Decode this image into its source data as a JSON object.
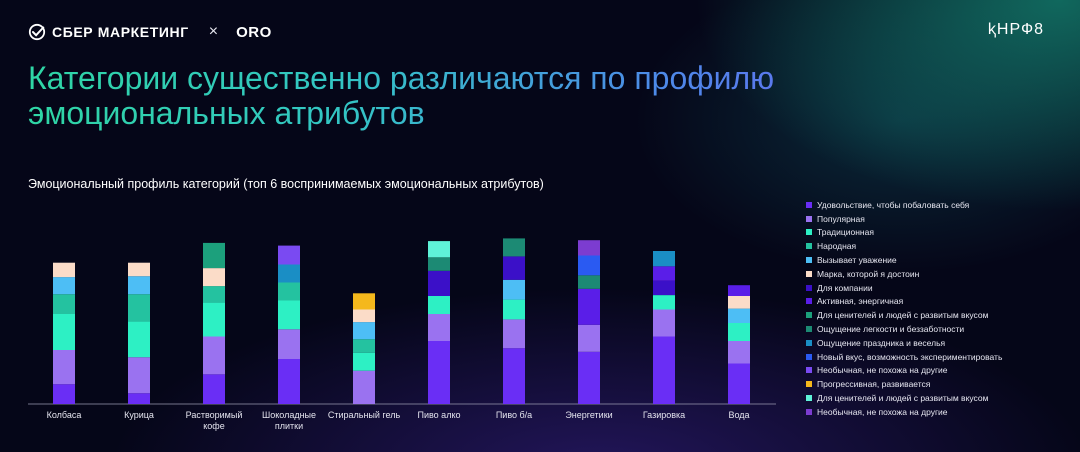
{
  "header": {
    "brand": "СБЕР МАРКЕТИНГ",
    "times": "×",
    "partner": "ORO",
    "right_logo": "ⱪНРФ8"
  },
  "title": "Категории существенно различаются по профилю эмоциональных атрибутов",
  "chart_title": "Эмоциональный профиль категорий (топ 6 воспринимаемых эмоциональных атрибутов)",
  "colors": {
    "Удовольствие, чтобы побаловать себя": "#6a2ef5",
    "Популярная": "#9a72f0",
    "Традиционная": "#2df0c4",
    "Народная": "#24c2a0",
    "Вызывает уважение": "#4dbef5",
    "Марка, которой я достоин": "#fbdcc8",
    "Для компании": "#3b10c8",
    "Активная, энергичная": "#5a1ee8",
    "Для ценителей и людей с развитым вкусом": "#1ca07c",
    "Ощущение легкости и беззаботности": "#1c8a74",
    "Ощущение праздника и веселья": "#1a8ec5",
    "Новый вкус, возможность экспериментировать": "#2a5af2",
    "Необычная, не похожа на другие": "#7a4af2",
    "Прогрессивная, развивается": "#f5b81c",
    "Для ценителей и людей с развитым вкусом ": "#5ff2d8",
    "Необычная, не похожа на другие ": "#7c3cd0"
  },
  "chart_data": {
    "type": "bar",
    "stacked": true,
    "title": "Эмоциональный профиль категорий (топ 6 воспринимаемых эмоциональных атрибутов)",
    "xlabel": "",
    "ylabel": "",
    "grid": false,
    "legend_position": "right",
    "categories": [
      "Колбаса",
      "Курица",
      "Растворимый\nкофе",
      "Шоколадные\nплитки",
      "Стиральный гель",
      "Пиво алко",
      "Пиво б/а",
      "Энергетики",
      "Газировка",
      "Вода"
    ],
    "legend": [
      "Удовольствие, чтобы побаловать себя",
      "Популярная",
      "Традиционная",
      "Народная",
      "Вызывает уважение",
      "Марка, которой я достоин",
      "Для компании",
      "Активная, энергичная",
      "Для ценителей и людей с развитым вкусом",
      "Ощущение легкости и беззаботности",
      "Ощущение праздника и веселья",
      "Новый вкус, возможность экспериментировать",
      "Необычная, не похожа на другие",
      "Прогрессивная, развивается",
      "Для ценителей и людей с развитым вкусом ",
      "Необычная, не похожа на другие "
    ],
    "bars": [
      [
        [
          "Удовольствие, чтобы побаловать себя",
          22
        ],
        [
          "Популярная",
          38
        ],
        [
          "Традиционная",
          40
        ],
        [
          "Народная",
          22
        ],
        [
          "Вызывает уважение",
          19
        ],
        [
          "Марка, которой я достоин",
          16
        ]
      ],
      [
        [
          "Удовольствие, чтобы побаловать себя",
          12
        ],
        [
          "Популярная",
          40
        ],
        [
          "Традиционная",
          40
        ],
        [
          "Народная",
          30
        ],
        [
          "Вызывает уважение",
          20
        ],
        [
          "Марка, которой я достоин",
          15
        ]
      ],
      [
        [
          "Удовольствие, чтобы побаловать себя",
          33
        ],
        [
          "Популярная",
          42
        ],
        [
          "Традиционная",
          38
        ],
        [
          "Народная",
          18
        ],
        [
          "Марка, которой я достоин",
          20
        ],
        [
          "Для ценителей и людей с развитым вкусом",
          28
        ]
      ],
      [
        [
          "Удовольствие, чтобы побаловать себя",
          50
        ],
        [
          "Популярная",
          33
        ],
        [
          "Традиционная",
          32
        ],
        [
          "Народная",
          20
        ],
        [
          "Ощущение праздника и веселья",
          20
        ],
        [
          "Необычная, не похожа на другие",
          21
        ]
      ],
      [
        [
          "Популярная",
          37
        ],
        [
          "Традиционная",
          20
        ],
        [
          "Народная",
          15
        ],
        [
          "Вызывает уважение",
          19
        ],
        [
          "Марка, которой я достоин",
          14
        ],
        [
          "Прогрессивная, развивается",
          18
        ]
      ],
      [
        [
          "Удовольствие, чтобы побаловать себя",
          70
        ],
        [
          "Популярная",
          30
        ],
        [
          "Традиционная",
          20
        ],
        [
          "Для компании",
          28
        ],
        [
          "Ощущение легкости и беззаботности",
          15
        ],
        [
          "Для ценителей и людей с развитым вкусом ",
          18
        ]
      ],
      [
        [
          "Удовольствие, чтобы побаловать себя",
          62
        ],
        [
          "Популярная",
          32
        ],
        [
          "Традиционная",
          22
        ],
        [
          "Вызывает уважение",
          22
        ],
        [
          "Для компании",
          26
        ],
        [
          "Ощущение легкости и беззаботности",
          20
        ]
      ],
      [
        [
          "Удовольствие, чтобы побаловать себя",
          58
        ],
        [
          "Популярная",
          30
        ],
        [
          "Активная, энергичная",
          40
        ],
        [
          "Ощущение легкости и беззаботности",
          15
        ],
        [
          "Новый вкус, возможность экспериментировать",
          22
        ],
        [
          "Необычная, не похожа на другие ",
          17
        ]
      ],
      [
        [
          "Удовольствие, чтобы побаловать себя",
          75
        ],
        [
          "Популярная",
          30
        ],
        [
          "Традиционная",
          16
        ],
        [
          "Для компании",
          16
        ],
        [
          "Активная, энергичная",
          16
        ],
        [
          "Ощущение праздника и веселья",
          17
        ]
      ],
      [
        [
          "Удовольствие, чтобы побаловать себя",
          45
        ],
        [
          "Популярная",
          25
        ],
        [
          "Традиционная",
          20
        ],
        [
          "Вызывает уважение",
          16
        ],
        [
          "Марка, которой я достоин",
          14
        ],
        [
          "Активная, энергичная",
          12
        ]
      ]
    ]
  }
}
